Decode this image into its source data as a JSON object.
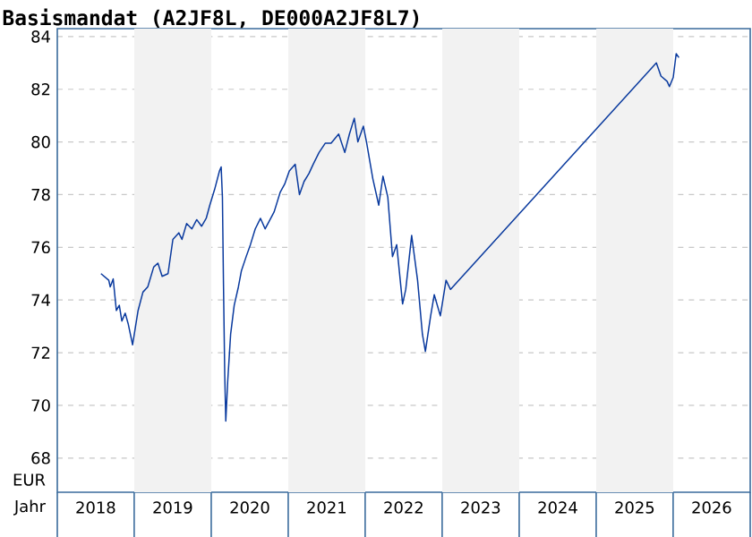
{
  "chart_data": {
    "type": "line",
    "title": "Basismandat (A2JF8L, DE000A2JF8L7)",
    "xlabel": "Jahr",
    "ylabel": "EUR",
    "xlim": [
      "2018-01-01",
      "2027-01-01"
    ],
    "ylim": [
      66.7,
      84.3
    ],
    "xticks": [
      {
        "value": "2018-07-02",
        "label": "2018"
      },
      {
        "value": "2019-07-02",
        "label": "2019"
      },
      {
        "value": "2020-07-02",
        "label": "2020"
      },
      {
        "value": "2021-07-02",
        "label": "2021"
      },
      {
        "value": "2022-07-02",
        "label": "2022"
      },
      {
        "value": "2023-07-02",
        "label": "2023"
      },
      {
        "value": "2024-07-02",
        "label": "2024"
      },
      {
        "value": "2025-07-02",
        "label": "2025"
      },
      {
        "value": "2026-07-02",
        "label": "2026"
      }
    ],
    "yticks": [
      68,
      70,
      72,
      74,
      76,
      78,
      80,
      82,
      84
    ],
    "grid": "y",
    "bands": [
      {
        "axis": "x",
        "from": "2019-01-01",
        "to": "2020-01-01",
        "color": "#f2f2f2"
      },
      {
        "axis": "x",
        "from": "2021-01-01",
        "to": "2022-01-01",
        "color": "#f2f2f2"
      },
      {
        "axis": "x",
        "from": "2023-01-01",
        "to": "2024-01-01",
        "color": "#f2f2f2"
      },
      {
        "axis": "x",
        "from": "2025-01-01",
        "to": "2026-01-01",
        "color": "#f2f2f2"
      }
    ],
    "series": [
      {
        "color": "#0a3a9e",
        "x": [
          "2018-07-27",
          "2018-09-02",
          "2018-09-09",
          "2018-09-23",
          "2018-10-08",
          "2018-10-22",
          "2018-11-03",
          "2018-11-19",
          "2018-12-03",
          "2018-12-24",
          "2019-01-19",
          "2019-02-11",
          "2019-03-06",
          "2019-04-03",
          "2019-04-23",
          "2019-05-13",
          "2019-06-10",
          "2019-07-03",
          "2019-07-31",
          "2019-08-15",
          "2019-09-06",
          "2019-10-01",
          "2019-10-24",
          "2019-11-16",
          "2019-12-08",
          "2019-12-25",
          "2020-01-17",
          "2020-02-09",
          "2020-02-17",
          "2020-02-23",
          "2020-02-28",
          "2020-03-05",
          "2020-03-10",
          "2020-03-19",
          "2020-04-02",
          "2020-04-19",
          "2020-05-09",
          "2020-05-23",
          "2020-06-15",
          "2020-07-05",
          "2020-07-28",
          "2020-08-22",
          "2020-09-13",
          "2020-10-03",
          "2020-10-26",
          "2020-11-24",
          "2020-12-15",
          "2021-01-06",
          "2021-02-03",
          "2021-02-23",
          "2021-03-17",
          "2021-04-09",
          "2021-04-29",
          "2021-05-27",
          "2021-06-25",
          "2021-07-23",
          "2021-08-28",
          "2021-09-26",
          "2021-10-18",
          "2021-11-10",
          "2021-11-27",
          "2021-12-23",
          "2022-01-08",
          "2022-02-06",
          "2022-03-06",
          "2022-03-26",
          "2022-04-18",
          "2022-05-10",
          "2022-05-30",
          "2022-06-27",
          "2022-07-12",
          "2022-08-09",
          "2022-09-06",
          "2022-09-29",
          "2022-10-13",
          "2022-11-07",
          "2022-11-24",
          "2022-12-23",
          "2023-01-19",
          "2023-02-09",
          "2025-10-13",
          "2025-11-04",
          "2025-12-03",
          "2025-12-14",
          "2026-01-01",
          "2026-01-15",
          "2026-01-28"
        ],
        "values": [
          75.0,
          74.75,
          74.5,
          74.8,
          73.6,
          73.8,
          73.2,
          73.5,
          73.1,
          72.3,
          73.6,
          74.3,
          74.5,
          75.25,
          75.4,
          74.9,
          75.0,
          76.3,
          76.55,
          76.3,
          76.9,
          76.7,
          77.05,
          76.8,
          77.1,
          77.6,
          78.2,
          78.9,
          79.05,
          77.9,
          74.6,
          71.15,
          69.4,
          70.9,
          72.7,
          73.8,
          74.5,
          75.1,
          75.65,
          76.1,
          76.7,
          77.1,
          76.7,
          77.0,
          77.35,
          78.1,
          78.4,
          78.9,
          79.15,
          78.0,
          78.5,
          78.8,
          79.15,
          79.6,
          79.95,
          79.95,
          80.3,
          79.6,
          80.3,
          80.9,
          80.0,
          80.6,
          79.95,
          78.6,
          77.6,
          78.7,
          77.9,
          75.65,
          76.1,
          73.85,
          74.4,
          76.45,
          74.75,
          72.7,
          72.05,
          73.4,
          74.2,
          73.4,
          74.75,
          74.4,
          83.0,
          82.5,
          82.3,
          82.1,
          82.45,
          83.35,
          83.2
        ]
      }
    ]
  }
}
